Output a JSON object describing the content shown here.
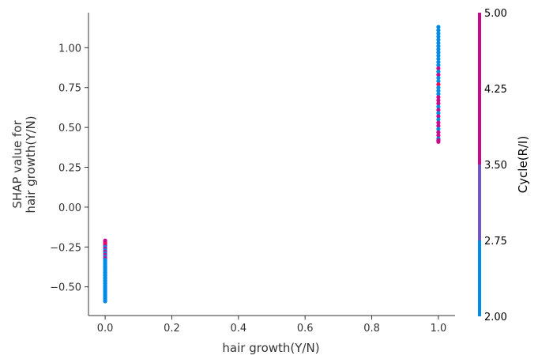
{
  "chart_data": {
    "type": "scatter",
    "title": "",
    "xlabel": "hair growth(Y/N)",
    "ylabel_lines": [
      "SHAP value for",
      "hair growth(Y/N)"
    ],
    "xlim": [
      -0.05,
      1.05
    ],
    "ylim": [
      -0.68,
      1.22
    ],
    "xticks": [
      0.0,
      0.2,
      0.4,
      0.6,
      0.8,
      1.0
    ],
    "xtick_labels": [
      "0.0",
      "0.2",
      "0.4",
      "0.6",
      "0.8",
      "1.0"
    ],
    "yticks": [
      -0.5,
      -0.25,
      0.0,
      0.25,
      0.5,
      0.75,
      1.0
    ],
    "ytick_labels": [
      "−0.50",
      "−0.25",
      "0.00",
      "0.25",
      "0.50",
      "0.75",
      "1.00"
    ],
    "grid": false,
    "points": [
      {
        "x": 0,
        "y": -0.21,
        "c": 4
      },
      {
        "x": 0,
        "y": -0.22,
        "c": 4
      },
      {
        "x": 0,
        "y": -0.23,
        "c": 5
      },
      {
        "x": 0,
        "y": -0.24,
        "c": 4
      },
      {
        "x": 0,
        "y": -0.25,
        "c": 2
      },
      {
        "x": 0,
        "y": -0.26,
        "c": 4
      },
      {
        "x": 0,
        "y": -0.27,
        "c": 2
      },
      {
        "x": 0,
        "y": -0.28,
        "c": 4
      },
      {
        "x": 0,
        "y": -0.29,
        "c": 2
      },
      {
        "x": 0,
        "y": -0.3,
        "c": 4
      },
      {
        "x": 0,
        "y": -0.31,
        "c": 2
      },
      {
        "x": 0,
        "y": -0.32,
        "c": 4
      },
      {
        "x": 0,
        "y": -0.33,
        "c": 2
      },
      {
        "x": 0,
        "y": -0.34,
        "c": 2
      },
      {
        "x": 0,
        "y": -0.35,
        "c": 2
      },
      {
        "x": 0,
        "y": -0.36,
        "c": 2
      },
      {
        "x": 0,
        "y": -0.37,
        "c": 2
      },
      {
        "x": 0,
        "y": -0.38,
        "c": 2
      },
      {
        "x": 0,
        "y": -0.39,
        "c": 2
      },
      {
        "x": 0,
        "y": -0.4,
        "c": 2
      },
      {
        "x": 0,
        "y": -0.41,
        "c": 2
      },
      {
        "x": 0,
        "y": -0.42,
        "c": 2
      },
      {
        "x": 0,
        "y": -0.43,
        "c": 2
      },
      {
        "x": 0,
        "y": -0.44,
        "c": 2
      },
      {
        "x": 0,
        "y": -0.45,
        "c": 2
      },
      {
        "x": 0,
        "y": -0.46,
        "c": 2
      },
      {
        "x": 0,
        "y": -0.47,
        "c": 2
      },
      {
        "x": 0,
        "y": -0.48,
        "c": 2
      },
      {
        "x": 0,
        "y": -0.49,
        "c": 2
      },
      {
        "x": 0,
        "y": -0.5,
        "c": 2
      },
      {
        "x": 0,
        "y": -0.51,
        "c": 2
      },
      {
        "x": 0,
        "y": -0.52,
        "c": 2
      },
      {
        "x": 0,
        "y": -0.53,
        "c": 2
      },
      {
        "x": 0,
        "y": -0.54,
        "c": 2
      },
      {
        "x": 0,
        "y": -0.55,
        "c": 2
      },
      {
        "x": 0,
        "y": -0.56,
        "c": 2
      },
      {
        "x": 0,
        "y": -0.57,
        "c": 2
      },
      {
        "x": 0,
        "y": -0.58,
        "c": 2
      },
      {
        "x": 0,
        "y": -0.59,
        "c": 2
      },
      {
        "x": 1,
        "y": 1.13,
        "c": 2
      },
      {
        "x": 1,
        "y": 1.11,
        "c": 2
      },
      {
        "x": 1,
        "y": 1.09,
        "c": 2
      },
      {
        "x": 1,
        "y": 1.07,
        "c": 2
      },
      {
        "x": 1,
        "y": 1.05,
        "c": 2
      },
      {
        "x": 1,
        "y": 1.03,
        "c": 2
      },
      {
        "x": 1,
        "y": 1.01,
        "c": 2
      },
      {
        "x": 1,
        "y": 0.99,
        "c": 2
      },
      {
        "x": 1,
        "y": 0.97,
        "c": 2
      },
      {
        "x": 1,
        "y": 0.95,
        "c": 2
      },
      {
        "x": 1,
        "y": 0.93,
        "c": 2
      },
      {
        "x": 1,
        "y": 0.91,
        "c": 2
      },
      {
        "x": 1,
        "y": 0.89,
        "c": 2
      },
      {
        "x": 1,
        "y": 0.87,
        "c": 4
      },
      {
        "x": 1,
        "y": 0.85,
        "c": 2
      },
      {
        "x": 1,
        "y": 0.83,
        "c": 4
      },
      {
        "x": 1,
        "y": 0.81,
        "c": 2
      },
      {
        "x": 1,
        "y": 0.79,
        "c": 2
      },
      {
        "x": 1,
        "y": 0.77,
        "c": 5
      },
      {
        "x": 1,
        "y": 0.75,
        "c": 2
      },
      {
        "x": 1,
        "y": 0.73,
        "c": 2
      },
      {
        "x": 1,
        "y": 0.71,
        "c": 2
      },
      {
        "x": 1,
        "y": 0.69,
        "c": 4
      },
      {
        "x": 1,
        "y": 0.67,
        "c": 4
      },
      {
        "x": 1,
        "y": 0.65,
        "c": 4
      },
      {
        "x": 1,
        "y": 0.63,
        "c": 2
      },
      {
        "x": 1,
        "y": 0.61,
        "c": 4
      },
      {
        "x": 1,
        "y": 0.59,
        "c": 2
      },
      {
        "x": 1,
        "y": 0.57,
        "c": 4
      },
      {
        "x": 1,
        "y": 0.55,
        "c": 2
      },
      {
        "x": 1,
        "y": 0.53,
        "c": 4
      },
      {
        "x": 1,
        "y": 0.51,
        "c": 4
      },
      {
        "x": 1,
        "y": 0.49,
        "c": 2
      },
      {
        "x": 1,
        "y": 0.47,
        "c": 4
      },
      {
        "x": 1,
        "y": 0.45,
        "c": 4
      },
      {
        "x": 1,
        "y": 0.43,
        "c": 2
      },
      {
        "x": 1,
        "y": 0.42,
        "c": 4
      },
      {
        "x": 1,
        "y": 0.41,
        "c": 4
      }
    ],
    "colorbar": {
      "label": "Cycle(R/I)",
      "ticks": [
        2.0,
        2.75,
        3.5,
        4.25,
        5.0
      ],
      "tick_labels": [
        "2.00",
        "2.75",
        "3.50",
        "4.25",
        "5.00"
      ],
      "range": [
        2,
        5
      ],
      "bands": [
        {
          "from": 2.0,
          "to": 2.75,
          "color": "#008bea"
        },
        {
          "from": 2.75,
          "to": 3.5,
          "color": "#7255c6"
        },
        {
          "from": 3.5,
          "to": 5.0,
          "color": "#c8098d"
        }
      ]
    },
    "colors": {
      "2": "#008bea",
      "3": "#7255c6",
      "4": "#c8098d",
      "5": "#ff0052"
    }
  }
}
